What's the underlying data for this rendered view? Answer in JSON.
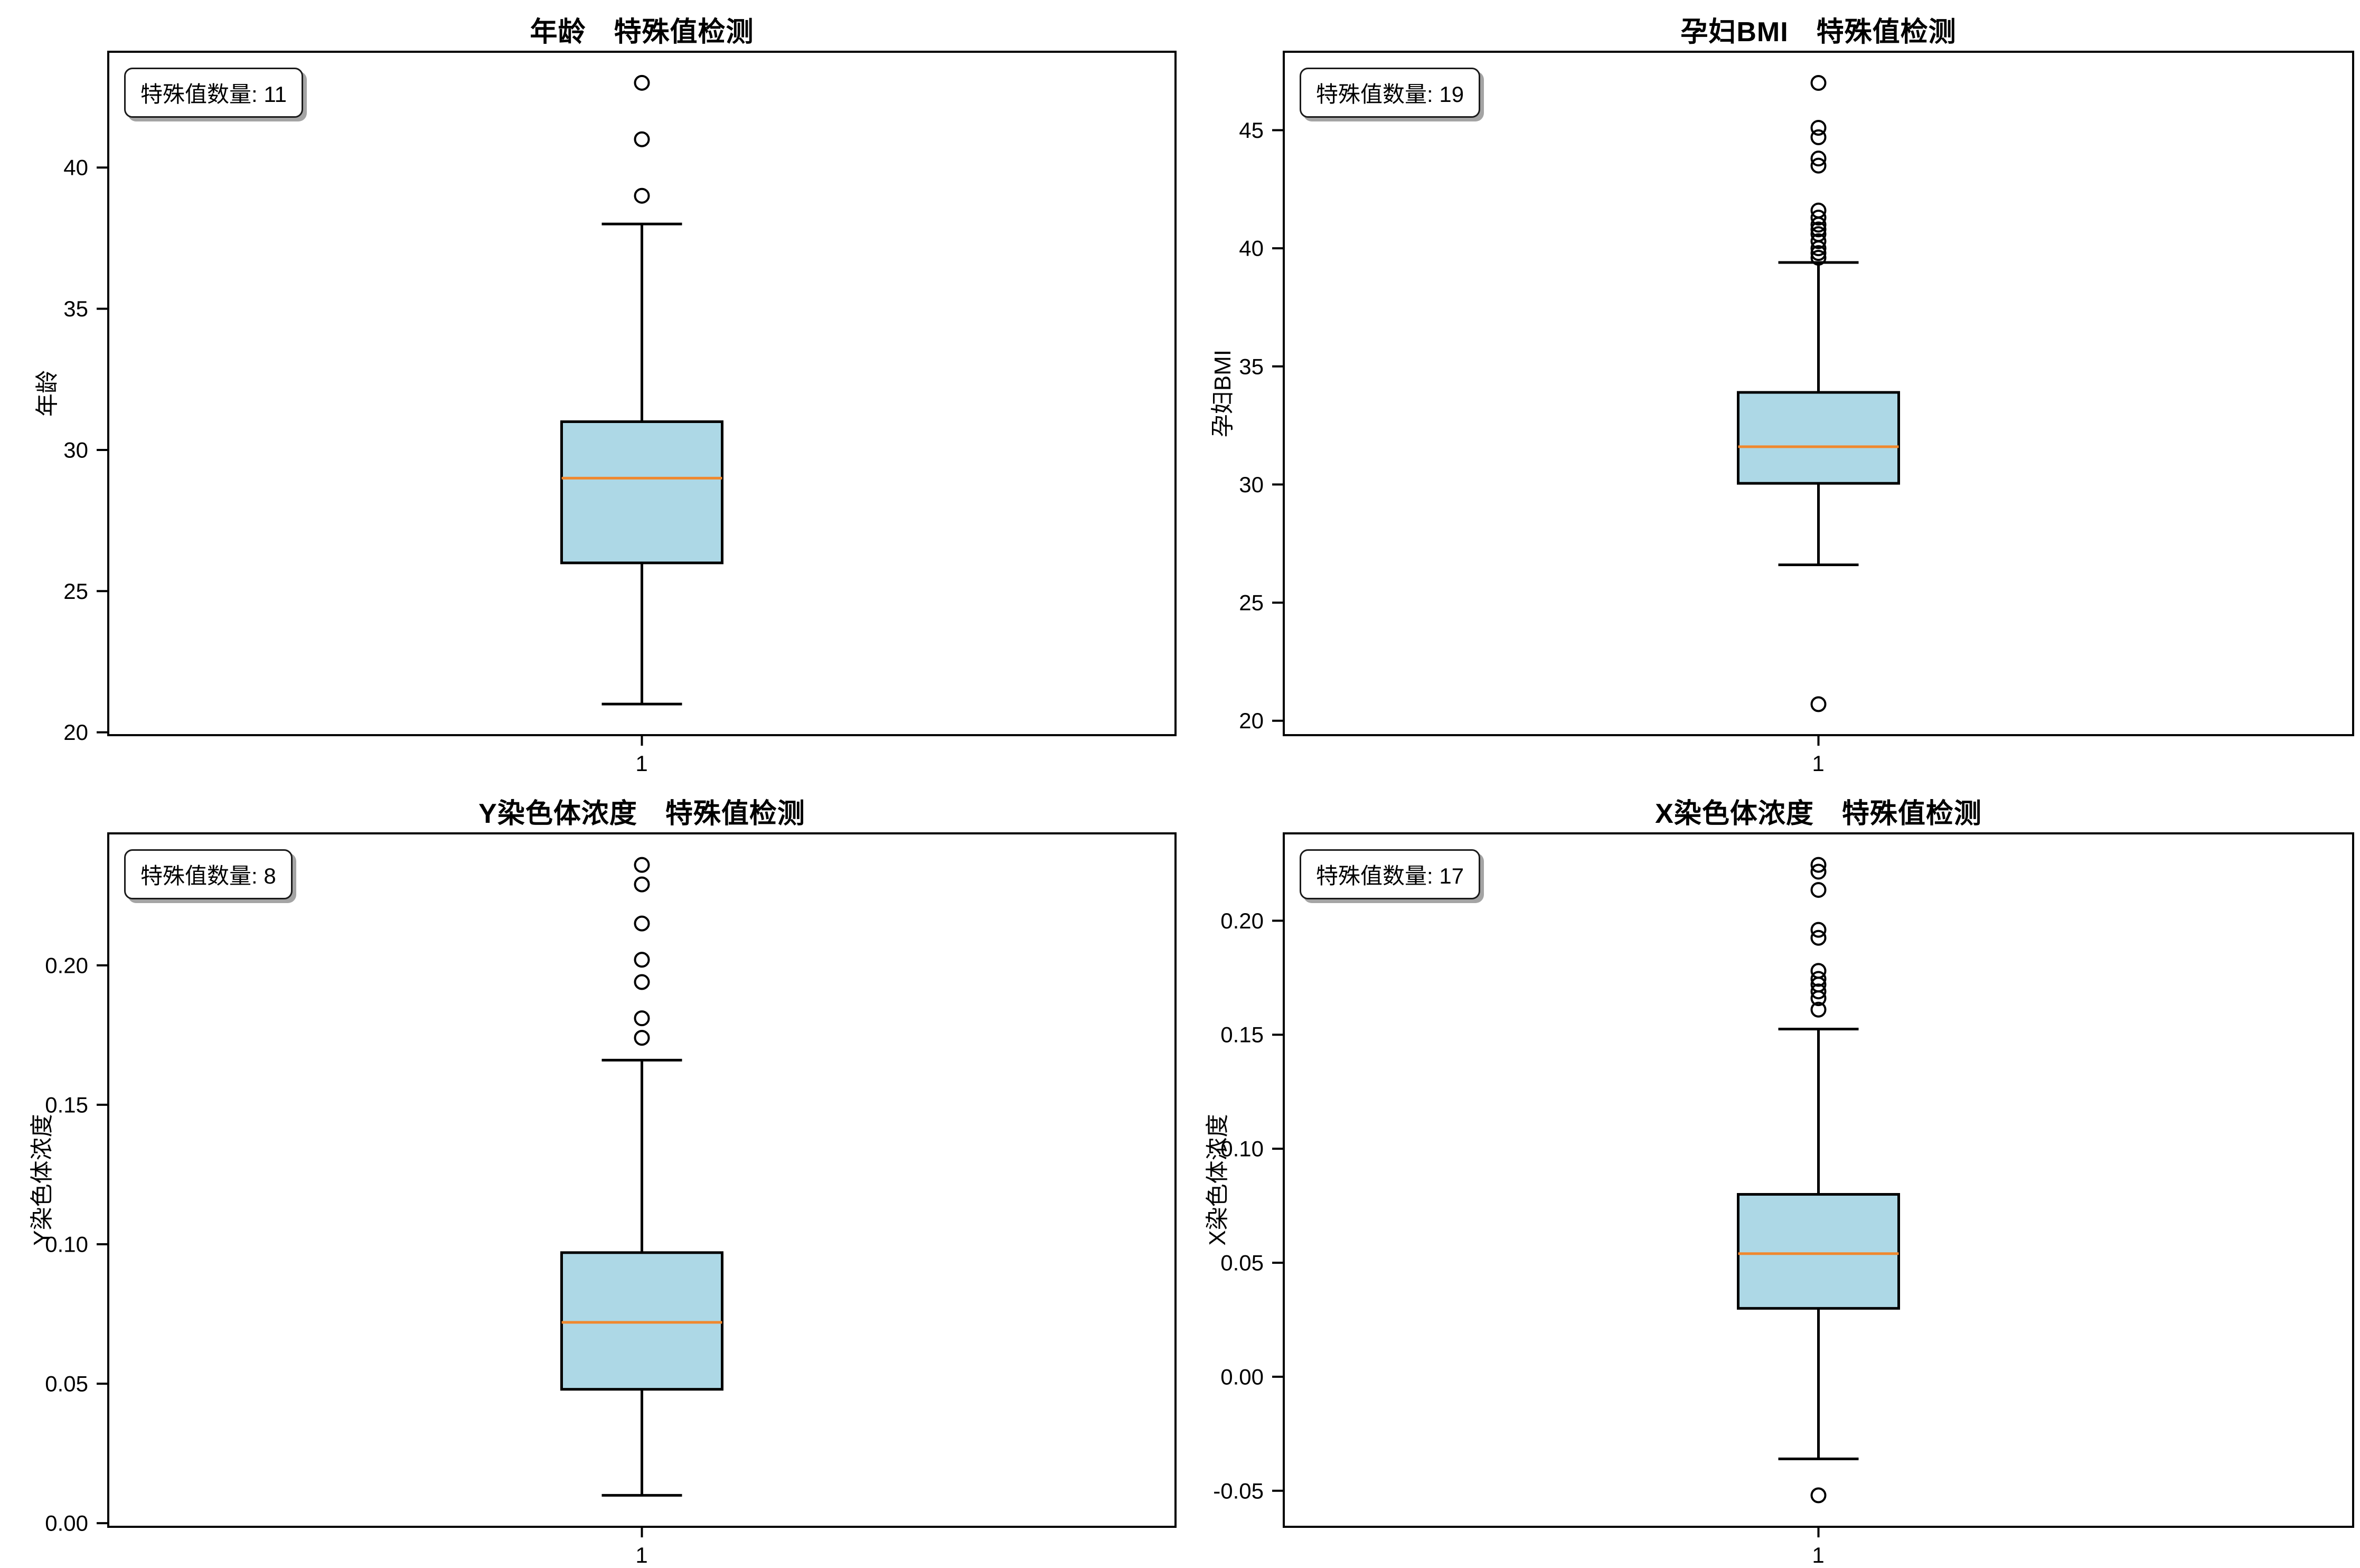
{
  "figure": {
    "background": "#ffffff",
    "box_fill_color": "#add8e6",
    "median_color": "#f0882e",
    "line_color": "#000000",
    "annotation_prefix": "特殊值数量"
  },
  "chart_data": [
    {
      "type": "boxplot",
      "title": "年龄　特殊值检测",
      "ylabel": "年龄",
      "xlabel_tick": "1",
      "annotation": "特殊值数量: 11",
      "outlier_count": 11,
      "ylim": [
        19.9,
        44.1
      ],
      "yticks": [
        {
          "v": 20,
          "label": "20"
        },
        {
          "v": 25,
          "label": "25"
        },
        {
          "v": 30,
          "label": "30"
        },
        {
          "v": 35,
          "label": "35"
        },
        {
          "v": 40,
          "label": "40"
        }
      ],
      "box": {
        "whislo": 21,
        "q1": 26,
        "med": 29,
        "q3": 31,
        "whishi": 38
      },
      "outliers": [
        43,
        41,
        39
      ]
    },
    {
      "type": "boxplot",
      "title": "孕妇BMI　特殊值检测",
      "ylabel": "孕妇BMI",
      "xlabel_tick": "1",
      "annotation": "特殊值数量: 19",
      "outlier_count": 19,
      "ylim": [
        19.39,
        48.32
      ],
      "yticks": [
        {
          "v": 20,
          "label": "20"
        },
        {
          "v": 25,
          "label": "25"
        },
        {
          "v": 30,
          "label": "30"
        },
        {
          "v": 35,
          "label": "35"
        },
        {
          "v": 40,
          "label": "40"
        },
        {
          "v": 45,
          "label": "45"
        }
      ],
      "box": {
        "whislo": 26.6,
        "q1": 30.05,
        "med": 31.6,
        "q3": 33.9,
        "whishi": 39.4
      },
      "outliers": [
        47.0,
        45.1,
        44.7,
        43.8,
        43.5,
        41.6,
        41.3,
        41.0,
        40.8,
        40.6,
        40.3,
        40.0,
        39.8,
        39.6,
        20.7
      ]
    },
    {
      "type": "boxplot",
      "title": "Y染色体浓度　特殊值检测",
      "ylabel": "Y染色体浓度",
      "xlabel_tick": "1",
      "annotation": "特殊值数量: 8",
      "outlier_count": 8,
      "ylim": [
        -0.0013,
        0.2473
      ],
      "yticks": [
        {
          "v": 0.0,
          "label": "0.00"
        },
        {
          "v": 0.05,
          "label": "0.05"
        },
        {
          "v": 0.1,
          "label": "0.10"
        },
        {
          "v": 0.15,
          "label": "0.15"
        },
        {
          "v": 0.2,
          "label": "0.20"
        }
      ],
      "box": {
        "whislo": 0.01,
        "q1": 0.048,
        "med": 0.072,
        "q3": 0.097,
        "whishi": 0.166
      },
      "outliers": [
        0.236,
        0.229,
        0.215,
        0.202,
        0.194,
        0.181,
        0.174
      ]
    },
    {
      "type": "boxplot",
      "title": "X染色体浓度　特殊值检测",
      "ylabel": "X染色体浓度",
      "xlabel_tick": "1",
      "annotation": "特殊值数量: 17",
      "outlier_count": 17,
      "ylim": [
        -0.0658,
        0.2383
      ],
      "yticks": [
        {
          "v": -0.05,
          "label": "-0.05"
        },
        {
          "v": 0.0,
          "label": "0.00"
        },
        {
          "v": 0.05,
          "label": "0.05"
        },
        {
          "v": 0.1,
          "label": "0.10"
        },
        {
          "v": 0.15,
          "label": "0.15"
        },
        {
          "v": 0.2,
          "label": "0.20"
        }
      ],
      "box": {
        "whislo": -0.036,
        "q1": 0.03,
        "med": 0.054,
        "q3": 0.08,
        "whishi": 0.1525
      },
      "outliers": [
        0.2245,
        0.2215,
        0.2135,
        0.196,
        0.1925,
        0.178,
        0.1745,
        0.172,
        0.169,
        0.166,
        0.161,
        -0.052
      ]
    }
  ]
}
